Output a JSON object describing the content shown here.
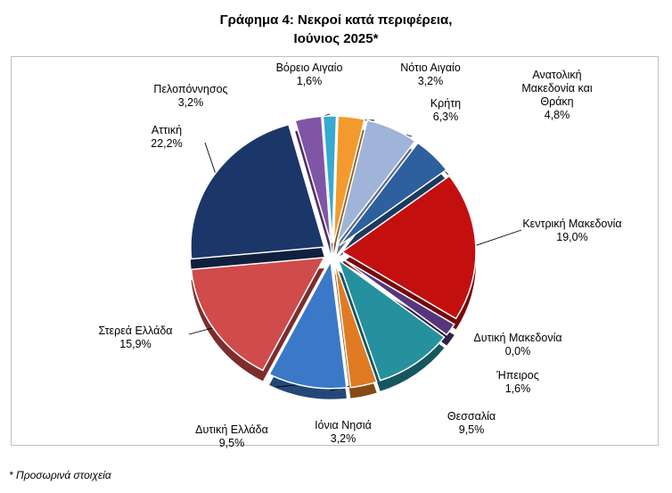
{
  "chart_data": {
    "type": "pie",
    "title": [
      "Γράφημα 4: Νεκροί κατά περιφέρεια,",
      "Ιούνιος 2025*"
    ],
    "slices": [
      {
        "name": "Ανατολική Μακεδονία και Θράκη",
        "name_lines": [
          "Ανατολική",
          "Μακεδονία και",
          "Θράκη"
        ],
        "value": 4.8,
        "label": "4,8%",
        "color": "#2e5f9e"
      },
      {
        "name": "Κεντρική Μακεδονία",
        "name_lines": [
          "Κεντρική Μακεδονία"
        ],
        "value": 19.0,
        "label": "19,0%",
        "color": "#c40f0f"
      },
      {
        "name": "Δυτική Μακεδονία",
        "name_lines": [
          "Δυτική Μακεδονία"
        ],
        "value": 0.0,
        "label": "0,0%",
        "color": "#7a9a3a"
      },
      {
        "name": "Ήπειρος",
        "name_lines": [
          "Ήπειρος"
        ],
        "value": 1.6,
        "label": "1,6%",
        "color": "#55367a"
      },
      {
        "name": "Θεσσαλία",
        "name_lines": [
          "Θεσσαλία"
        ],
        "value": 9.5,
        "label": "9,5%",
        "color": "#25909e"
      },
      {
        "name": "Ιόνια Νησιά",
        "name_lines": [
          "Ιόνια Νησιά"
        ],
        "value": 3.2,
        "label": "3,2%",
        "color": "#e07b24"
      },
      {
        "name": "Δυτική Ελλάδα",
        "name_lines": [
          "Δυτική Ελλάδα"
        ],
        "value": 9.5,
        "label": "9,5%",
        "color": "#3b78c8"
      },
      {
        "name": "Στερεά Ελλάδα",
        "name_lines": [
          "Στερεά Ελλάδα"
        ],
        "value": 15.9,
        "label": "15,9%",
        "color": "#d04b4b"
      },
      {
        "name": "Αττική",
        "name_lines": [
          "Αττική"
        ],
        "value": 22.2,
        "label": "22,2%",
        "color": "#1b3668"
      },
      {
        "name": "Πελοπόννησος",
        "name_lines": [
          "Πελοπόννησος"
        ],
        "value": 3.2,
        "label": "3,2%",
        "color": "#8055a8"
      },
      {
        "name": "Βόρειο Αιγαίο",
        "name_lines": [
          "Βόρειο Αιγαίο"
        ],
        "value": 1.6,
        "label": "1,6%",
        "color": "#37aad0"
      },
      {
        "name": "Νότιο Αιγαίο",
        "name_lines": [
          "Νότιο Αιγαίο"
        ],
        "value": 3.2,
        "label": "3,2%",
        "color": "#f39a2e"
      },
      {
        "name": "Κρήτη",
        "name_lines": [
          "Κρήτη"
        ],
        "value": 6.3,
        "label": "6,3%",
        "color": "#9fb4d8"
      }
    ],
    "start_angle_deg": 36,
    "exploded": true,
    "legend": "none",
    "data_labels": "category name and percentage with leader lines"
  },
  "footnote": "* Προσωρινά στοιχεία"
}
